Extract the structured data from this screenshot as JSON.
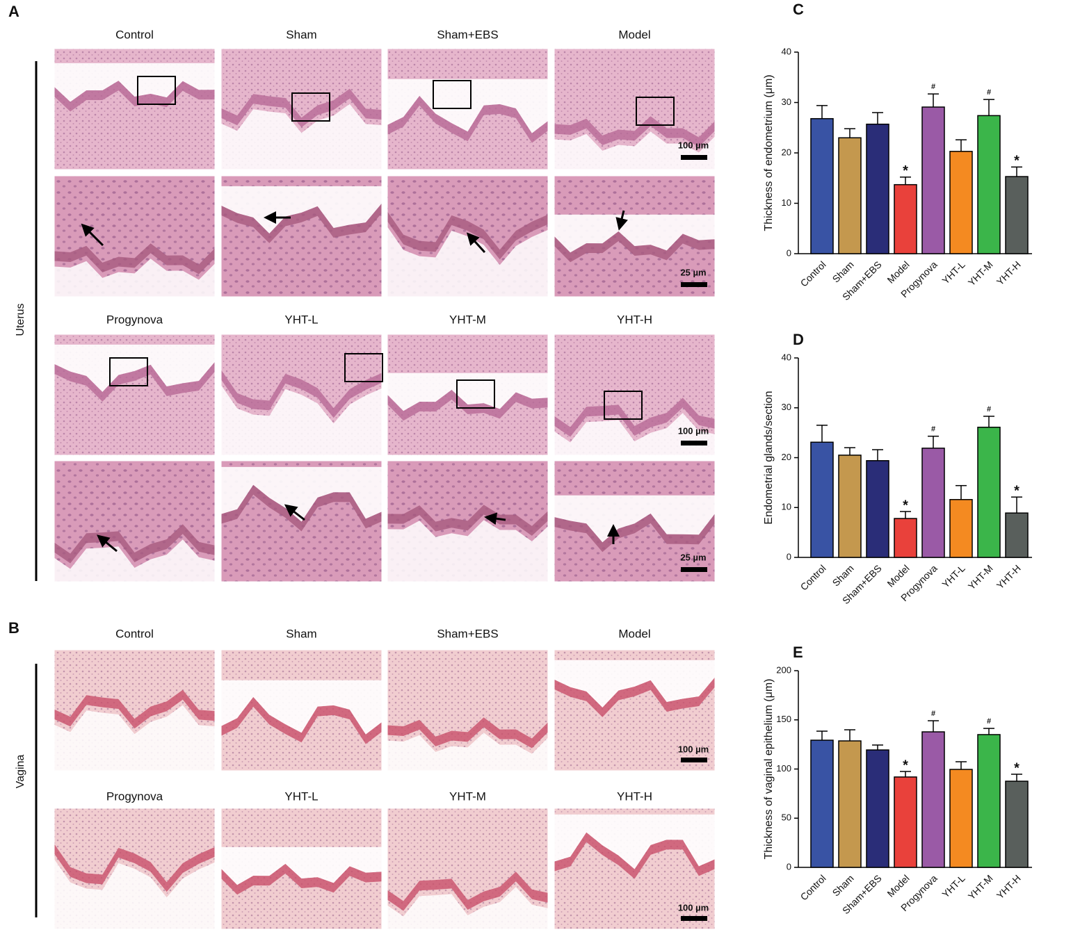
{
  "panel_a": {
    "label": "A",
    "tissue": "Uterus",
    "rows": [
      {
        "titles": [
          "Control",
          "Sham",
          "Sham+EBS",
          "Model"
        ],
        "scale_bars": [
          "100 µm",
          "25 µm"
        ]
      },
      {
        "titles": [
          "Progynova",
          "YHT-L",
          "YHT-M",
          "YHT-H"
        ],
        "scale_bars": [
          "100 µm",
          "25 µm"
        ]
      }
    ]
  },
  "panel_b": {
    "label": "B",
    "tissue": "Vagina",
    "rows": [
      {
        "titles": [
          "Control",
          "Sham",
          "Sham+EBS",
          "Model"
        ],
        "scale_bar": "100 µm"
      },
      {
        "titles": [
          "Progynova",
          "YHT-L",
          "YHT-M",
          "YHT-H"
        ],
        "scale_bar": "100 µm"
      }
    ]
  },
  "chart_data": [
    {
      "type": "bar",
      "label": "C",
      "y_label": "Thickness of endometrium (μm)",
      "categories": [
        "Control",
        "Sham",
        "Sham+EBS",
        "Model",
        "Progynova",
        "YHT-L",
        "YHT-M",
        "YHT-H"
      ],
      "values": [
        26.8,
        23,
        25.7,
        13.7,
        29.1,
        20.3,
        27.4,
        15.3
      ],
      "errors": [
        2.6,
        1.8,
        2.3,
        1.5,
        2.6,
        2.3,
        3.2,
        1.9
      ],
      "markers": [
        null,
        null,
        null,
        "*",
        "#",
        null,
        "#",
        "*"
      ],
      "colors": [
        "#3953a4",
        "#c4984e",
        "#2a2d78",
        "#e9413b",
        "#9a5aa6",
        "#f48a21",
        "#3bb54a",
        "#595f5c"
      ],
      "ylim": [
        0,
        40
      ],
      "yticks": [
        0,
        10,
        20,
        30,
        40
      ]
    },
    {
      "type": "bar",
      "label": "D",
      "y_label": "Endometrial glands/section",
      "categories": [
        "Control",
        "Sham",
        "Sham+EBS",
        "Model",
        "Progynova",
        "YHT-L",
        "YHT-M",
        "YHT-H"
      ],
      "values": [
        23.1,
        20.5,
        19.4,
        7.8,
        21.9,
        11.6,
        26.1,
        8.9
      ],
      "errors": [
        3.4,
        1.5,
        2.2,
        1.4,
        2.4,
        2.8,
        2.2,
        3.2
      ],
      "markers": [
        null,
        null,
        null,
        "*",
        "#",
        null,
        "#",
        "*"
      ],
      "colors": [
        "#3953a4",
        "#c4984e",
        "#2a2d78",
        "#e9413b",
        "#9a5aa6",
        "#f48a21",
        "#3bb54a",
        "#595f5c"
      ],
      "ylim": [
        0,
        40
      ],
      "yticks": [
        0,
        10,
        20,
        30,
        40
      ]
    },
    {
      "type": "bar",
      "label": "E",
      "y_label": "Thickness of vaginal epithelium (μm)",
      "categories": [
        "Control",
        "Sham",
        "Sham+EBS",
        "Model",
        "Progynova",
        "YHT-L",
        "YHT-M",
        "YHT-H"
      ],
      "values": [
        129.3,
        128.6,
        119.4,
        91.9,
        137.8,
        99.6,
        135,
        87.6
      ],
      "errors": [
        9.2,
        11.3,
        5,
        5.6,
        11.3,
        7.8,
        6.3,
        7.1
      ],
      "markers": [
        null,
        null,
        null,
        "*",
        "#",
        null,
        "#",
        "*"
      ],
      "colors": [
        "#3953a4",
        "#c4984e",
        "#2a2d78",
        "#e9413b",
        "#9a5aa6",
        "#f48a21",
        "#3bb54a",
        "#595f5c"
      ],
      "ylim": [
        0,
        200
      ],
      "yticks": [
        0,
        50,
        100,
        150,
        200
      ]
    }
  ]
}
